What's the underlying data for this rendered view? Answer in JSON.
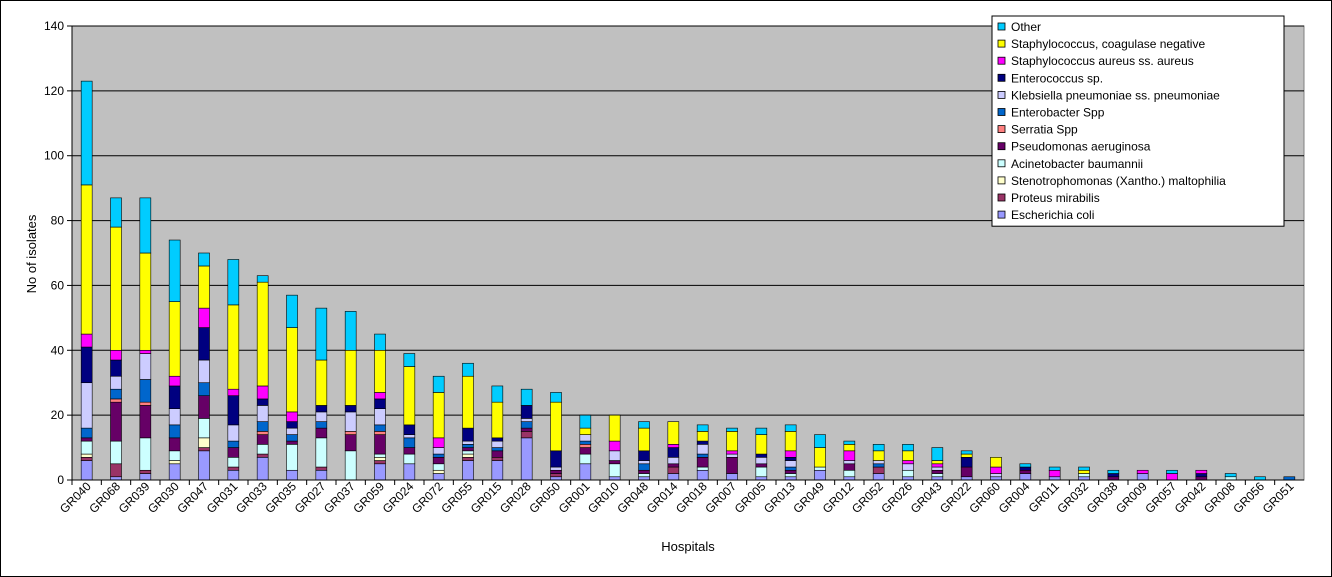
{
  "chart_data": {
    "type": "bar",
    "stacked": true,
    "title": "",
    "xlabel": "Hospitals",
    "ylabel": "No of isolates",
    "ylim": [
      0,
      140
    ],
    "yticks": [
      0,
      20,
      40,
      60,
      80,
      100,
      120,
      140
    ],
    "grid": true,
    "legend_position": "top-right",
    "plot_background": "#c0c0c0",
    "categories": [
      "GR040",
      "GR068",
      "GR039",
      "GR030",
      "GR047",
      "GR031",
      "GR033",
      "GR035",
      "GR027",
      "GR037",
      "GR059",
      "GR024",
      "GR072",
      "GR055",
      "GR015",
      "GR028",
      "GR050",
      "GR001",
      "GR010",
      "GR048",
      "GR014",
      "GR018",
      "GR007",
      "GR005",
      "GR013",
      "GR049",
      "GR012",
      "GR052",
      "GR026",
      "GR043",
      "GR022",
      "GR060",
      "GR004",
      "GR011",
      "GR032",
      "GR038",
      "GR009",
      "GR057",
      "GR042",
      "GR008",
      "GR056",
      "GR051"
    ],
    "series": [
      {
        "name": "Escherichia coli",
        "color": "#9999ff",
        "values": [
          6,
          1,
          2,
          5,
          9,
          3,
          7,
          3,
          3,
          0,
          5,
          5,
          2,
          6,
          6,
          13,
          1,
          5,
          1,
          1,
          2,
          3,
          2,
          1,
          1,
          3,
          1,
          2,
          1,
          1,
          1,
          1,
          2,
          1,
          1,
          0,
          2,
          0,
          0,
          0,
          0,
          0
        ]
      },
      {
        "name": "Proteus mirabilis",
        "color": "#993366",
        "values": [
          1,
          4,
          1,
          0,
          1,
          1,
          1,
          0,
          1,
          0,
          1,
          0,
          0,
          1,
          1,
          2,
          1,
          0,
          0,
          0,
          2,
          0,
          0,
          0,
          0,
          0,
          0,
          2,
          0,
          0,
          0,
          0,
          0,
          0,
          0,
          0,
          0,
          0,
          0,
          0,
          0,
          0
        ]
      },
      {
        "name": "Stenotrophomonas (Xantho.) maltophilia",
        "color": "#ffffcc",
        "values": [
          1,
          0,
          0,
          1,
          3,
          0,
          0,
          0,
          0,
          0,
          1,
          0,
          1,
          1,
          0,
          0,
          0,
          0,
          0,
          0,
          0,
          0,
          0,
          0,
          0,
          0,
          0,
          0,
          0,
          0,
          0,
          0,
          0,
          0,
          0,
          0,
          0,
          0,
          0,
          0,
          0,
          0
        ]
      },
      {
        "name": "Acinetobacter baumannii",
        "color": "#ccffff",
        "values": [
          4,
          7,
          10,
          3,
          6,
          3,
          3,
          8,
          9,
          9,
          1,
          3,
          2,
          1,
          0,
          0,
          0,
          3,
          4,
          1,
          0,
          1,
          0,
          3,
          1,
          1,
          2,
          0,
          2,
          1,
          0,
          0,
          0,
          0,
          1,
          0,
          0,
          0,
          0,
          1,
          0,
          0
        ]
      },
      {
        "name": "Pseudomonas aeruginosa",
        "color": "#660066",
        "values": [
          1,
          12,
          10,
          4,
          7,
          3,
          3,
          1,
          3,
          5,
          6,
          2,
          2,
          1,
          2,
          1,
          1,
          2,
          1,
          1,
          1,
          3,
          5,
          1,
          1,
          0,
          2,
          0,
          0,
          1,
          3,
          0,
          1,
          0,
          0,
          1,
          0,
          0,
          1,
          0,
          0,
          0
        ]
      },
      {
        "name": "Serratia Spp",
        "color": "#ff8080",
        "values": [
          0,
          1,
          1,
          0,
          0,
          0,
          1,
          0,
          0,
          1,
          1,
          0,
          0,
          0,
          0,
          0,
          0,
          1,
          0,
          0,
          0,
          0,
          0,
          0,
          0,
          0,
          0,
          0,
          0,
          0,
          0,
          0,
          0,
          0,
          0,
          0,
          0,
          0,
          0,
          0,
          0,
          0
        ]
      },
      {
        "name": "Enterobacter Spp",
        "color": "#0066cc",
        "values": [
          3,
          3,
          7,
          4,
          4,
          2,
          3,
          2,
          2,
          0,
          2,
          3,
          1,
          1,
          1,
          2,
          0,
          1,
          0,
          2,
          0,
          1,
          0,
          0,
          1,
          0,
          0,
          1,
          0,
          0,
          0,
          0,
          0,
          0,
          0,
          0,
          0,
          0,
          0,
          0,
          0,
          1
        ]
      },
      {
        "name": "Klebsiella pneumoniae ss. pneumoniae",
        "color": "#ccccff",
        "values": [
          14,
          4,
          8,
          5,
          7,
          5,
          5,
          2,
          3,
          6,
          5,
          1,
          2,
          1,
          2,
          1,
          1,
          2,
          3,
          1,
          2,
          3,
          1,
          2,
          2,
          0,
          1,
          1,
          2,
          1,
          0,
          1,
          0,
          0,
          0,
          0,
          0,
          0,
          0,
          0,
          0,
          0
        ]
      },
      {
        "name": "Enterococcus sp.",
        "color": "#000080",
        "values": [
          11,
          5,
          0,
          7,
          10,
          9,
          2,
          2,
          2,
          2,
          3,
          3,
          0,
          4,
          1,
          4,
          5,
          0,
          0,
          3,
          3,
          1,
          0,
          1,
          1,
          0,
          0,
          0,
          0,
          0,
          3,
          0,
          1,
          0,
          0,
          1,
          0,
          0,
          1,
          0,
          0,
          0
        ]
      },
      {
        "name": "Staphylococcus aureus ss. aureus",
        "color": "#ff00ff",
        "values": [
          4,
          3,
          1,
          3,
          6,
          2,
          4,
          3,
          0,
          0,
          2,
          0,
          3,
          0,
          0,
          0,
          0,
          0,
          3,
          0,
          1,
          0,
          1,
          0,
          2,
          0,
          3,
          0,
          1,
          1,
          0,
          2,
          0,
          2,
          0,
          0,
          1,
          2,
          1,
          0,
          0,
          0
        ]
      },
      {
        "name": "Staphylococcus, coagulase negative",
        "color": "#ffff00",
        "values": [
          46,
          38,
          30,
          23,
          13,
          26,
          32,
          26,
          14,
          17,
          13,
          18,
          14,
          16,
          11,
          0,
          15,
          2,
          8,
          7,
          7,
          3,
          6,
          6,
          6,
          6,
          2,
          3,
          3,
          1,
          1,
          3,
          0,
          0,
          1,
          0,
          0,
          0,
          0,
          0,
          0,
          0
        ]
      },
      {
        "name": "Other",
        "color": "#00ccff",
        "values": [
          32,
          9,
          17,
          19,
          4,
          14,
          2,
          10,
          16,
          12,
          5,
          4,
          5,
          4,
          5,
          5,
          3,
          4,
          0,
          2,
          0,
          2,
          1,
          2,
          2,
          4,
          1,
          2,
          2,
          4,
          1,
          0,
          1,
          1,
          1,
          1,
          0,
          1,
          0,
          1,
          1,
          0
        ]
      }
    ]
  }
}
